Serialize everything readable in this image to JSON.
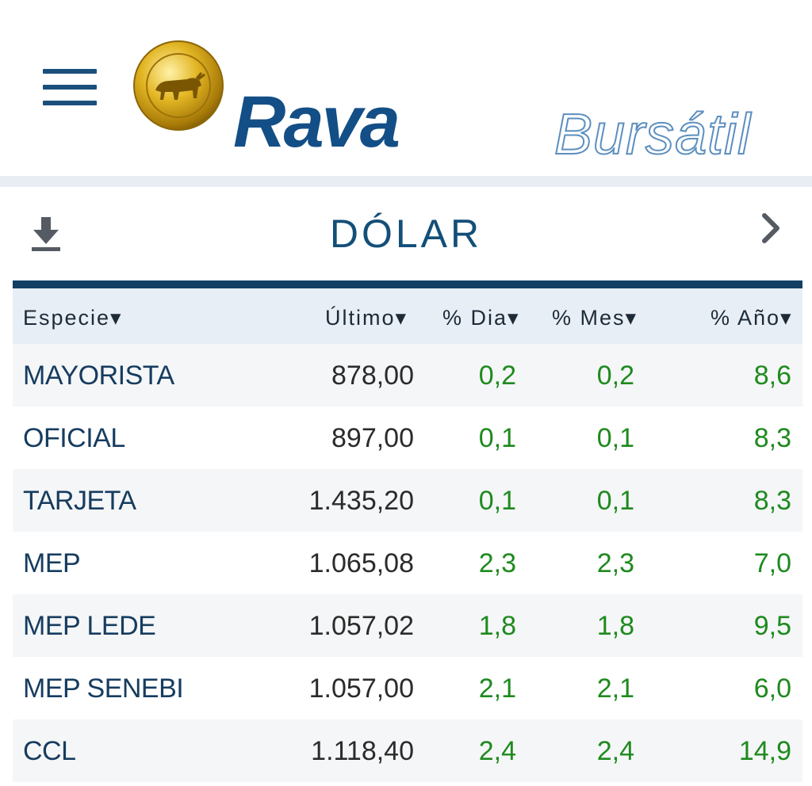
{
  "brand": {
    "name": "Rava",
    "sub": "Bursátil",
    "accent": "#134f86"
  },
  "card": {
    "title": "DÓLAR"
  },
  "icons": {
    "menu": "hamburger-menu-icon",
    "download": "download-icon",
    "next": "chevron-right-icon",
    "logo_medallion": "bull-coin-icon"
  },
  "table": {
    "headers": [
      "Especie▾",
      "Último▾",
      "% Dia▾",
      "% Mes▾",
      "% Año▾"
    ],
    "rows": [
      {
        "especie": "MAYORISTA",
        "ultimo": "878,00",
        "dia": "0,2",
        "mes": "0,2",
        "anio": "8,6"
      },
      {
        "especie": "OFICIAL",
        "ultimo": "897,00",
        "dia": "0,1",
        "mes": "0,1",
        "anio": "8,3"
      },
      {
        "especie": "TARJETA",
        "ultimo": "1.435,20",
        "dia": "0,1",
        "mes": "0,1",
        "anio": "8,3"
      },
      {
        "especie": "MEP",
        "ultimo": "1.065,08",
        "dia": "2,3",
        "mes": "2,3",
        "anio": "7,0"
      },
      {
        "especie": "MEP LEDE",
        "ultimo": "1.057,02",
        "dia": "1,8",
        "mes": "1,8",
        "anio": "9,5"
      },
      {
        "especie": "MEP SENEBI",
        "ultimo": "1.057,00",
        "dia": "2,1",
        "mes": "2,1",
        "anio": "6,0"
      },
      {
        "especie": "CCL",
        "ultimo": "1.118,40",
        "dia": "2,4",
        "mes": "2,4",
        "anio": "14,9"
      }
    ]
  },
  "colors": {
    "positive": "#1e8a1e",
    "header_bg": "#e8eef5",
    "rule": "#123f63"
  }
}
